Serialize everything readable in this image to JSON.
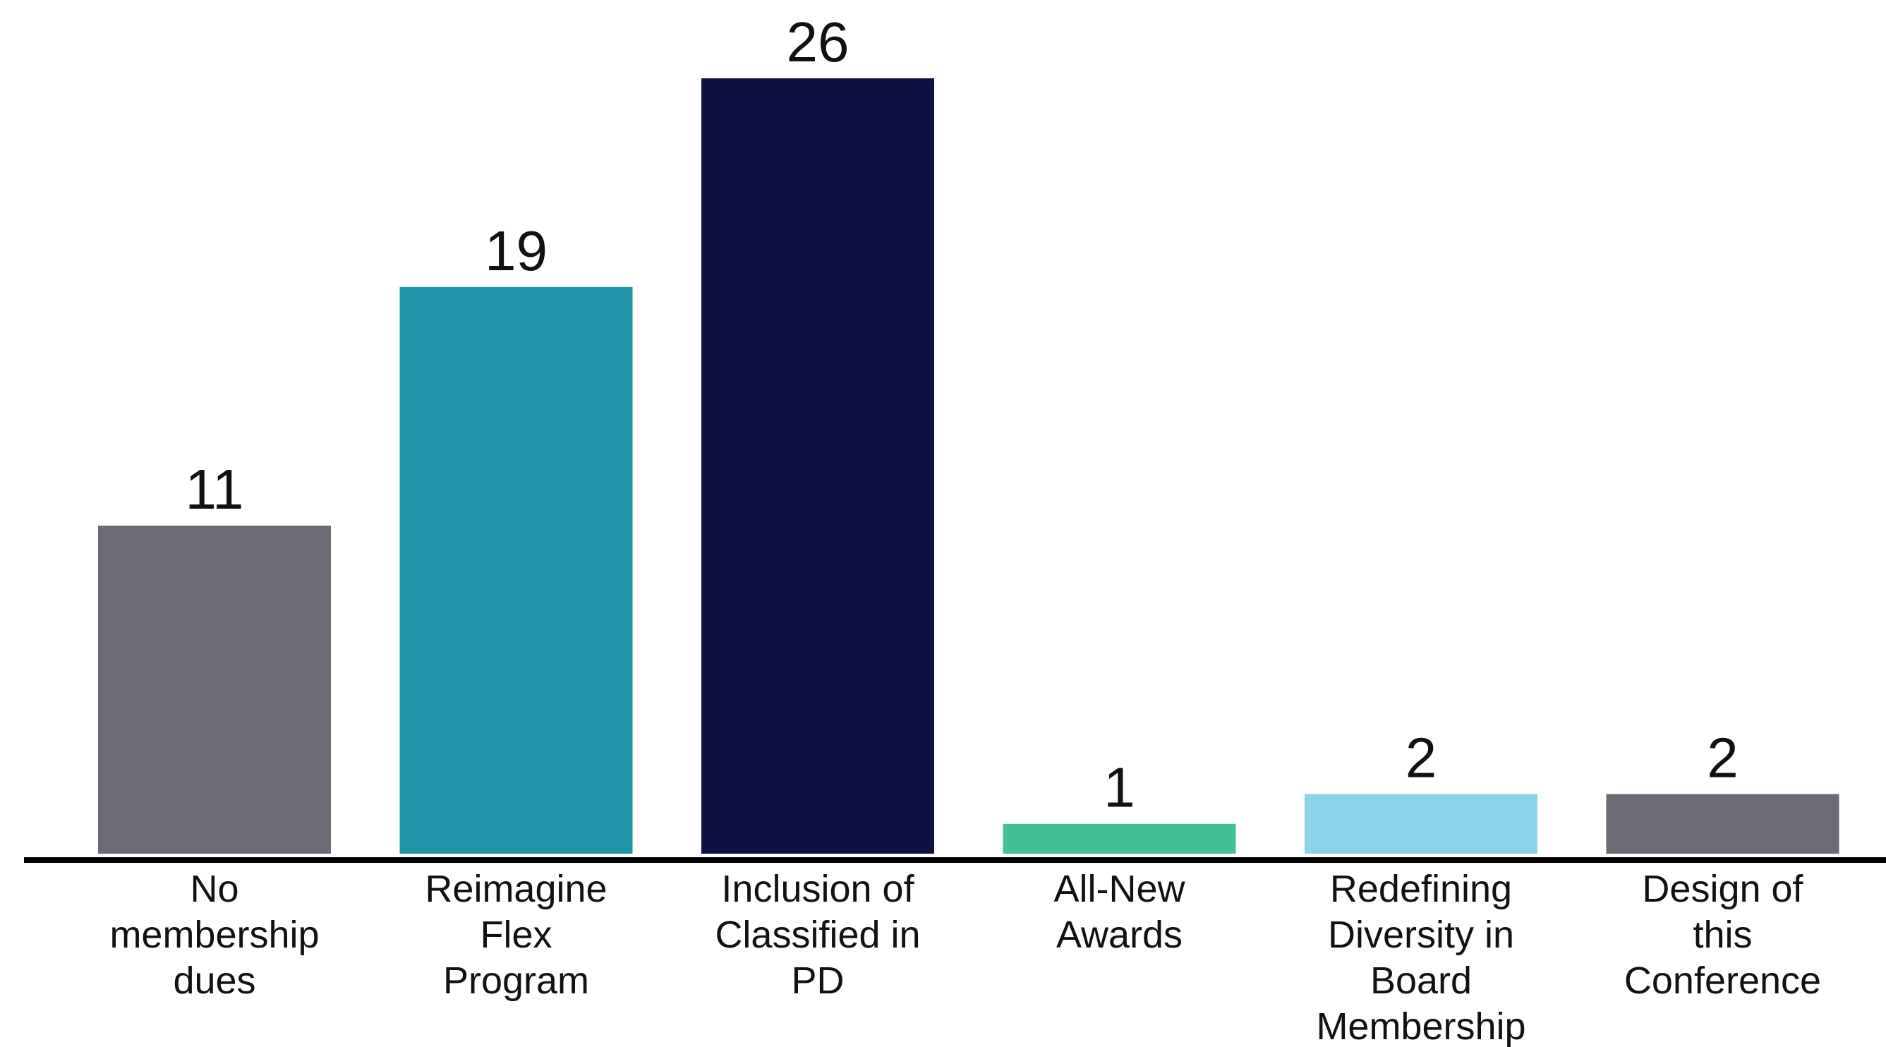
{
  "chart_data": {
    "type": "bar",
    "categories": [
      "No membership dues",
      "Reimagine Flex Program",
      "Inclusion of Classified in PD",
      "All-New Awards",
      "Redefining Diversity in Board Membership",
      "Design of this Conference"
    ],
    "category_lines": [
      [
        "No",
        "membership",
        "dues"
      ],
      [
        "Reimagine",
        "Flex",
        "Program"
      ],
      [
        "Inclusion of",
        "Classified in",
        "PD"
      ],
      [
        "All-New",
        "Awards"
      ],
      [
        "Redefining",
        "Diversity in",
        "Board",
        "Membership"
      ],
      [
        "Design of",
        "this",
        "Conference"
      ]
    ],
    "values": [
      11,
      19,
      26,
      1,
      2,
      2
    ],
    "colors": [
      "#6b6b75",
      "#1e95a6",
      "#0e1242",
      "#42c294",
      "#89d2e7",
      "#6b6b75"
    ],
    "data_labels": true,
    "grid": false,
    "legend": "none",
    "title": "",
    "xlabel": "",
    "ylabel": "",
    "ylim": [
      0,
      26
    ]
  }
}
